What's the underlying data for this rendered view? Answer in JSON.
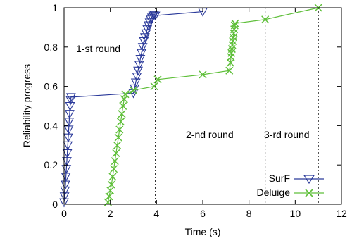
{
  "chart_data": {
    "type": "line",
    "title": "",
    "xlabel": "Time (s)",
    "ylabel": "Reliability progress",
    "xlim": [
      0,
      12
    ],
    "ylim": [
      0,
      1
    ],
    "xticks": [
      "0",
      "2",
      "4",
      "6",
      "8",
      "10",
      "12"
    ],
    "yticks": [
      "0",
      "0.2",
      "0.4",
      "0.6",
      "0.8",
      "1"
    ],
    "grid": false,
    "legend_position": "bottom-right",
    "annotations": [
      {
        "text": "1-st round",
        "x": 0.6,
        "y": 0.8
      },
      {
        "text": "2-nd round",
        "x": 5.4,
        "y": 0.35
      },
      {
        "text": "3-rd round",
        "x": 8.7,
        "y": 0.35
      }
    ],
    "vlines": [
      3.95,
      8.7,
      11.0
    ],
    "series": [
      {
        "name": "SurF",
        "color": "#2b3a9a",
        "marker": "triangle-down",
        "x": [
          0.0,
          0.02,
          0.04,
          0.06,
          0.08,
          0.1,
          0.12,
          0.14,
          0.16,
          0.18,
          0.2,
          0.22,
          0.24,
          0.26,
          0.28,
          0.3,
          3.0,
          3.05,
          3.1,
          3.15,
          3.2,
          3.25,
          3.3,
          3.35,
          3.4,
          3.45,
          3.5,
          3.55,
          3.6,
          3.65,
          3.7,
          3.75,
          3.8,
          3.85,
          3.9,
          3.95,
          6.0
        ],
        "y": [
          0.01,
          0.04,
          0.07,
          0.1,
          0.14,
          0.18,
          0.22,
          0.26,
          0.3,
          0.34,
          0.38,
          0.42,
          0.46,
          0.5,
          0.53,
          0.545,
          0.565,
          0.59,
          0.62,
          0.65,
          0.68,
          0.71,
          0.74,
          0.77,
          0.8,
          0.83,
          0.85,
          0.87,
          0.89,
          0.91,
          0.925,
          0.94,
          0.95,
          0.96,
          0.965,
          0.96,
          0.98
        ]
      },
      {
        "name": "Deluige",
        "color": "#5fbf3a",
        "marker": "x",
        "x": [
          1.9,
          1.95,
          2.0,
          2.05,
          2.1,
          2.15,
          2.2,
          2.25,
          2.3,
          2.35,
          2.4,
          2.45,
          2.5,
          2.55,
          2.6,
          2.65,
          3.0,
          3.9,
          4.05,
          6.0,
          7.15,
          7.2,
          7.22,
          7.24,
          7.26,
          7.28,
          7.3,
          7.32,
          7.34,
          7.36,
          7.38,
          7.4,
          8.7,
          11.0
        ],
        "y": [
          0.01,
          0.04,
          0.07,
          0.1,
          0.14,
          0.18,
          0.22,
          0.26,
          0.3,
          0.34,
          0.38,
          0.42,
          0.46,
          0.5,
          0.535,
          0.56,
          0.58,
          0.6,
          0.635,
          0.66,
          0.68,
          0.72,
          0.75,
          0.77,
          0.79,
          0.81,
          0.83,
          0.85,
          0.87,
          0.89,
          0.91,
          0.92,
          0.94,
          1.0
        ]
      }
    ]
  }
}
